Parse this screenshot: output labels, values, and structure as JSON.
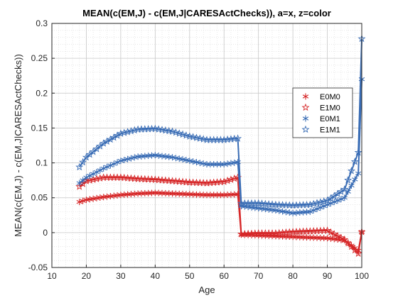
{
  "chart_data": {
    "type": "line",
    "title": "MEAN(c(EM,J) - c(EM,J|CARESActChecks)), a=x, z=color",
    "xlabel": "Age",
    "ylabel": "MEAN(c(EM,J) - c(EM,J|CARESActChecks))",
    "xlim": [
      10,
      100
    ],
    "ylim": [
      -0.05,
      0.3
    ],
    "xticks": [
      10,
      20,
      30,
      40,
      50,
      60,
      70,
      80,
      90,
      100
    ],
    "yticks": [
      -0.05,
      0,
      0.05,
      0.1,
      0.15,
      0.2,
      0.25,
      0.3
    ],
    "ytick_labels": [
      "-0.05",
      "0",
      "0.05",
      "0.1",
      "0.15",
      "0.2",
      "0.25",
      "0.3"
    ],
    "grid": true,
    "minor_grid": true,
    "legend_position": "right",
    "series": [
      {
        "name": "E0M0",
        "color": "#d62728",
        "marker": "asterisk",
        "x": [
          18,
          20,
          25,
          30,
          35,
          40,
          45,
          50,
          55,
          60,
          64,
          65,
          70,
          75,
          80,
          85,
          90,
          95,
          99,
          100
        ],
        "y": [
          0.044,
          0.047,
          0.051,
          0.054,
          0.056,
          0.057,
          0.056,
          0.055,
          0.054,
          0.054,
          0.055,
          -0.003,
          -0.004,
          -0.005,
          -0.006,
          -0.007,
          -0.008,
          -0.011,
          -0.026,
          0.001
        ]
      },
      {
        "name": "E1M0",
        "color": "#d62728",
        "marker": "pentagram",
        "x": [
          18,
          20,
          25,
          30,
          35,
          40,
          45,
          50,
          55,
          60,
          64,
          65,
          70,
          75,
          80,
          85,
          90,
          95,
          99,
          100
        ],
        "y": [
          0.066,
          0.074,
          0.079,
          0.079,
          0.077,
          0.076,
          0.074,
          0.072,
          0.071,
          0.073,
          0.079,
          -0.002,
          -0.001,
          -0.001,
          0.001,
          0.002,
          0.003,
          -0.01,
          -0.03,
          0.001
        ]
      },
      {
        "name": "E0M1",
        "color": "#3a6db5",
        "marker": "asterisk",
        "x": [
          18,
          20,
          25,
          30,
          35,
          40,
          45,
          50,
          55,
          60,
          64,
          65,
          70,
          75,
          80,
          85,
          90,
          95,
          99,
          100
        ],
        "y": [
          0.071,
          0.079,
          0.092,
          0.103,
          0.109,
          0.111,
          0.108,
          0.103,
          0.098,
          0.098,
          0.101,
          0.038,
          0.035,
          0.032,
          0.028,
          0.03,
          0.04,
          0.05,
          0.085,
          0.22
        ]
      },
      {
        "name": "E1M1",
        "color": "#3a6db5",
        "marker": "pentagram",
        "x": [
          18,
          20,
          25,
          30,
          35,
          40,
          45,
          50,
          55,
          60,
          64,
          65,
          70,
          75,
          80,
          85,
          90,
          95,
          99,
          100
        ],
        "y": [
          0.094,
          0.108,
          0.128,
          0.142,
          0.148,
          0.149,
          0.145,
          0.138,
          0.133,
          0.133,
          0.135,
          0.042,
          0.042,
          0.04,
          0.039,
          0.04,
          0.046,
          0.062,
          0.115,
          0.278
        ]
      }
    ]
  }
}
